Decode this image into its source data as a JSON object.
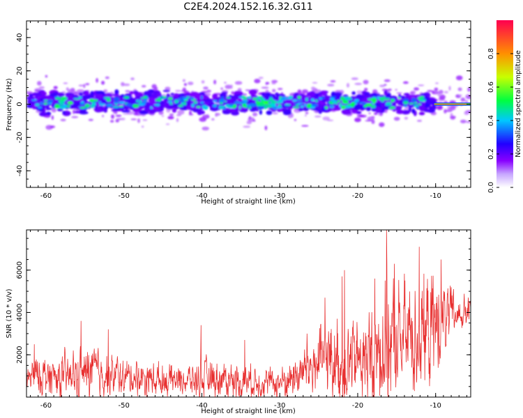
{
  "figure": {
    "title": "C2E4.2024.152.16.32.G11"
  },
  "colors": {
    "snr_line": "#e83030",
    "spectrogram_background": "#ffffff",
    "axes": "#000000"
  },
  "chart_data": [
    {
      "type": "heatmap",
      "name": "spectrogram",
      "xlabel": "Height of straight line (km)",
      "ylabel": "Frequency (Hz)",
      "xlim": [
        -62.5,
        -5.5
      ],
      "ylim": [
        -50,
        50
      ],
      "xticks": [
        -60,
        -50,
        -40,
        -30,
        -20,
        -10
      ],
      "yticks": [
        40,
        20,
        0,
        -20,
        -40
      ],
      "ytick_labels": [
        "40",
        "20",
        "0",
        "-20",
        "-40"
      ],
      "colorbar": {
        "label": "Normalized spectral amplitude",
        "range": [
          0,
          1
        ],
        "ticks": [
          0.0,
          0.2,
          0.4,
          0.6,
          0.8
        ],
        "tick_labels": [
          "0.0",
          "0.2",
          "0.4",
          "0.6",
          "0.8"
        ],
        "colormap": [
          "#ffffff",
          "#8800ff",
          "#2200ff",
          "#00c8ff",
          "#00ff40",
          "#c8ff00",
          "#ff9000",
          "#ff0050"
        ],
        "position": "right"
      },
      "band_center_hz": 1,
      "band_halfwidth_hz": 6,
      "notes_visible": "energy concentrated between about -8 and +10 Hz; strong narrow line near 0 Hz from -10 to -6 km",
      "grid": false
    },
    {
      "type": "line",
      "name": "snr",
      "xlabel": "Height of straight line (km)",
      "ylabel": "SNR (10 * v/v)",
      "xlim": [
        -62.5,
        -5.5
      ],
      "ylim": [
        0,
        7900
      ],
      "xticks": [
        -60,
        -50,
        -40,
        -30,
        -20,
        -10
      ],
      "yticks": [
        2000,
        4000,
        6000
      ],
      "ytick_labels": [
        "2000",
        "4000",
        "6000"
      ],
      "grid": false,
      "series": [
        {
          "color": "#e83030",
          "x": [
            -62.5,
            -61,
            -59,
            -57,
            -55,
            -54,
            -53,
            -51,
            -50,
            -49,
            -47,
            -45,
            -43,
            -41,
            -40,
            -39,
            -37,
            -35,
            -33,
            -31,
            -30,
            -29,
            -28,
            -27,
            -26,
            -25,
            -24,
            -23,
            -22,
            -21,
            -20,
            -19,
            -18,
            -17,
            -16.5,
            -16,
            -15,
            -14,
            -13,
            -12,
            -11,
            -10,
            -9,
            -8,
            -7,
            -6,
            -5.5
          ],
          "baseline": [
            900,
            1000,
            1000,
            950,
            1100,
            1200,
            1100,
            1000,
            900,
            950,
            900,
            800,
            800,
            800,
            800,
            900,
            850,
            800,
            750,
            700,
            700,
            800,
            1000,
            1200,
            1400,
            1600,
            1800,
            1700,
            1800,
            1700,
            1700,
            1800,
            2000,
            2300,
            2600,
            2500,
            2600,
            2800,
            2900,
            3000,
            3100,
            3300,
            3600,
            3800,
            3900,
            4000,
            4100
          ],
          "spread": [
            700,
            900,
            900,
            1000,
            1100,
            1400,
            1000,
            900,
            800,
            800,
            800,
            700,
            700,
            700,
            900,
            800,
            800,
            800,
            700,
            600,
            700,
            800,
            1000,
            1200,
            1400,
            1600,
            1800,
            1700,
            2200,
            2000,
            1800,
            2000,
            2400,
            2600,
            3400,
            3000,
            2600,
            2400,
            2600,
            2800,
            2400,
            2400,
            1800,
            1200,
            800,
            700,
            600
          ],
          "peaks": [
            [
              -61.5,
              2500
            ],
            [
              -55.5,
              3600
            ],
            [
              -52.0,
              3200
            ],
            [
              -40.1,
              3400
            ],
            [
              -34.5,
              2700
            ],
            [
              -26.5,
              3000
            ],
            [
              -24.2,
              4700
            ],
            [
              -22.0,
              5700
            ],
            [
              -21.7,
              6000
            ],
            [
              -17.8,
              5600
            ],
            [
              -16.3,
              7900
            ],
            [
              -15.3,
              6300
            ],
            [
              -12.1,
              7100
            ],
            [
              -9.3,
              6500
            ]
          ]
        }
      ]
    }
  ]
}
